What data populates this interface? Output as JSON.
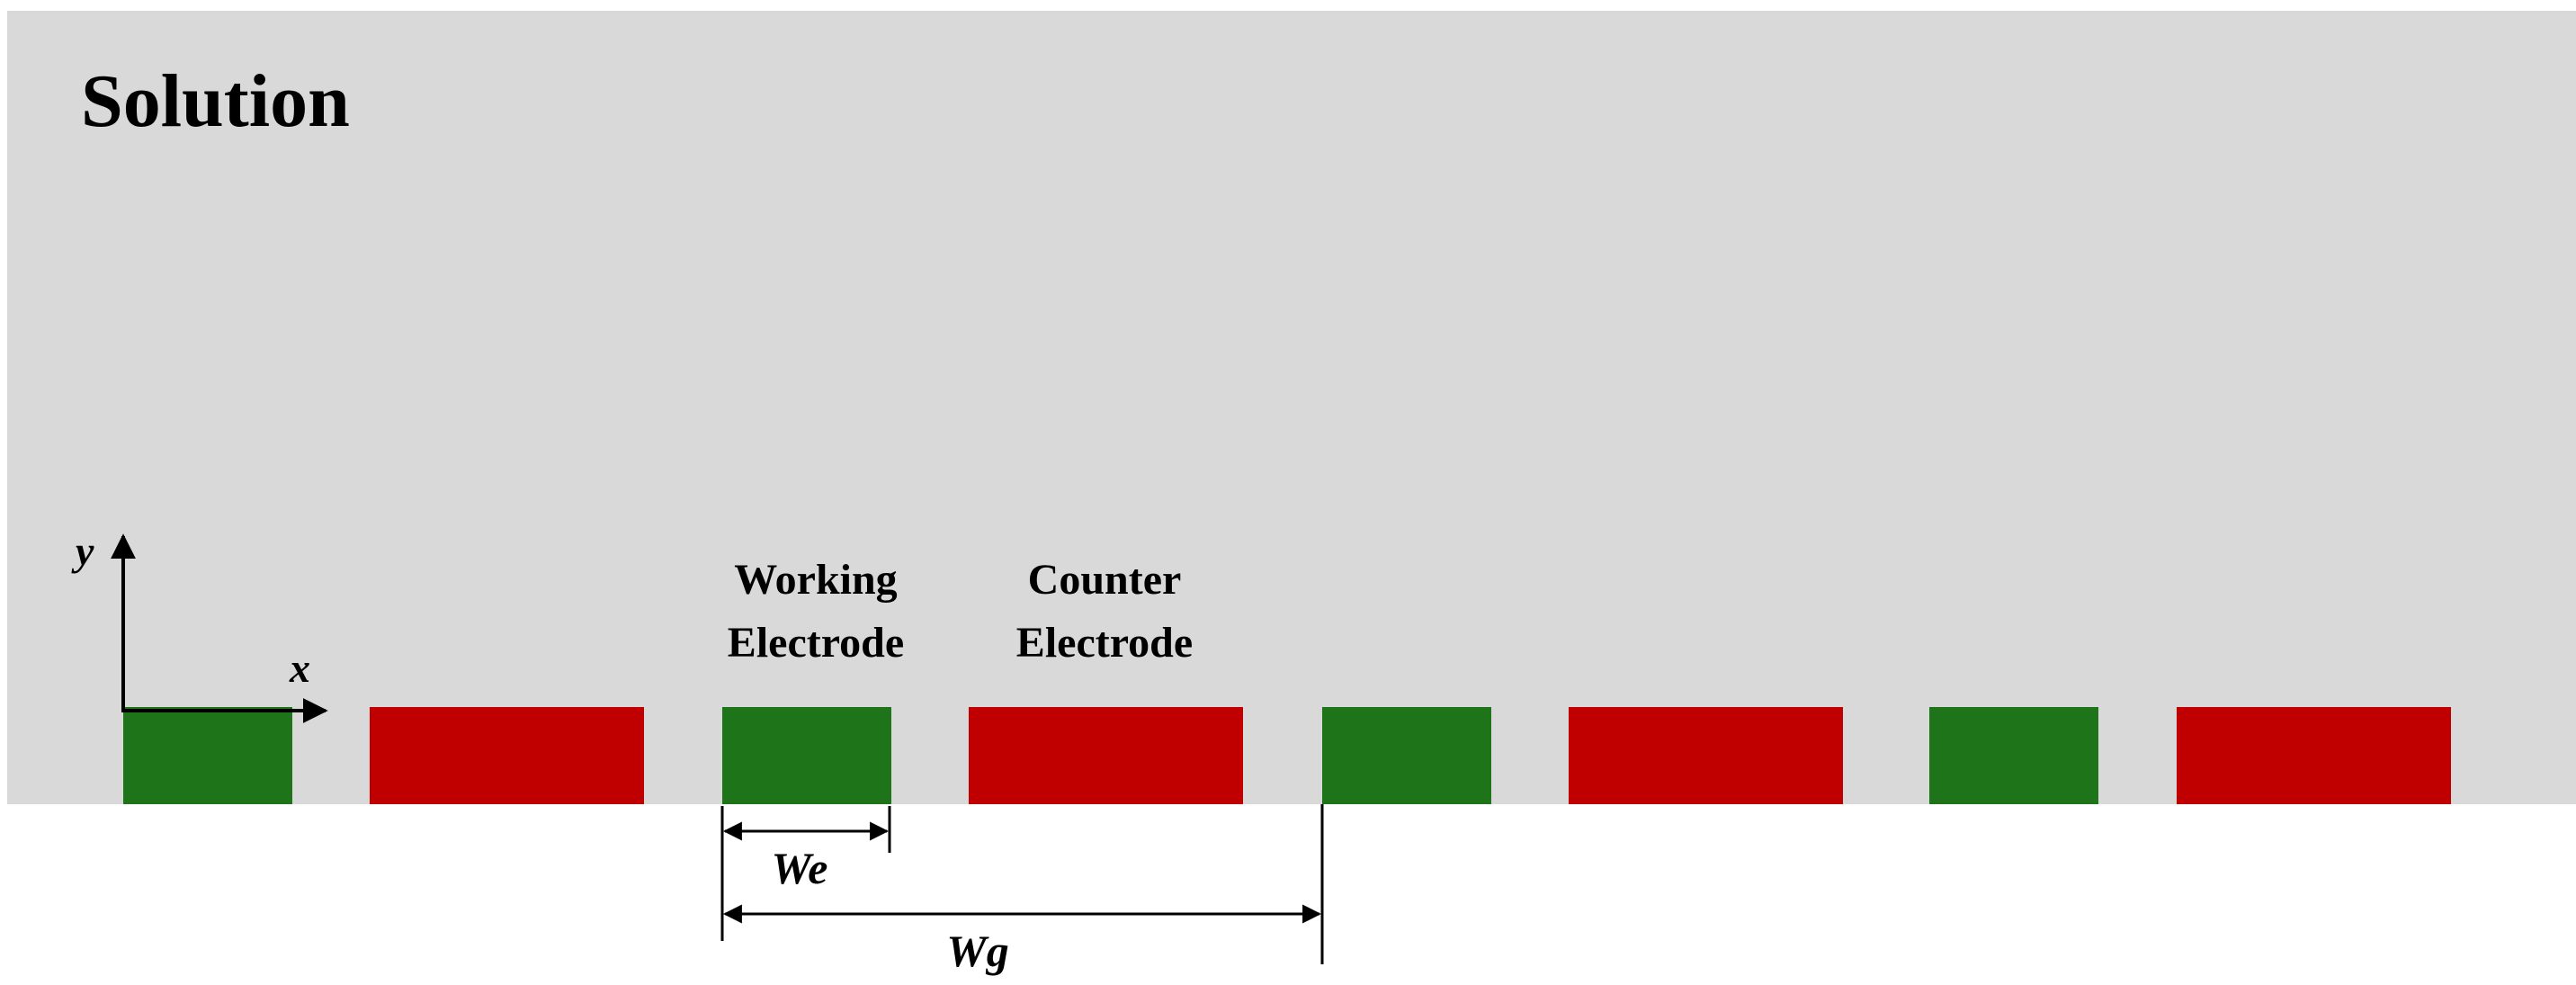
{
  "region_label": "Solution",
  "axes": {
    "x_label": "x",
    "y_label": "y"
  },
  "electrode_labels": {
    "working": [
      "Working",
      "Electrode"
    ],
    "counter": [
      "Counter",
      "Electrode"
    ]
  },
  "dimensions": {
    "electrode_width": "We",
    "gap_width": "Wg"
  },
  "electrodes": [
    {
      "type": "working"
    },
    {
      "type": "counter"
    },
    {
      "type": "working"
    },
    {
      "type": "counter"
    },
    {
      "type": "working"
    },
    {
      "type": "counter"
    },
    {
      "type": "working"
    },
    {
      "type": "counter"
    }
  ],
  "colors": {
    "solution": "#d9d9d9",
    "working": "#1e7419",
    "counter": "#c00000",
    "line": "#000000",
    "background": "#ffffff"
  }
}
